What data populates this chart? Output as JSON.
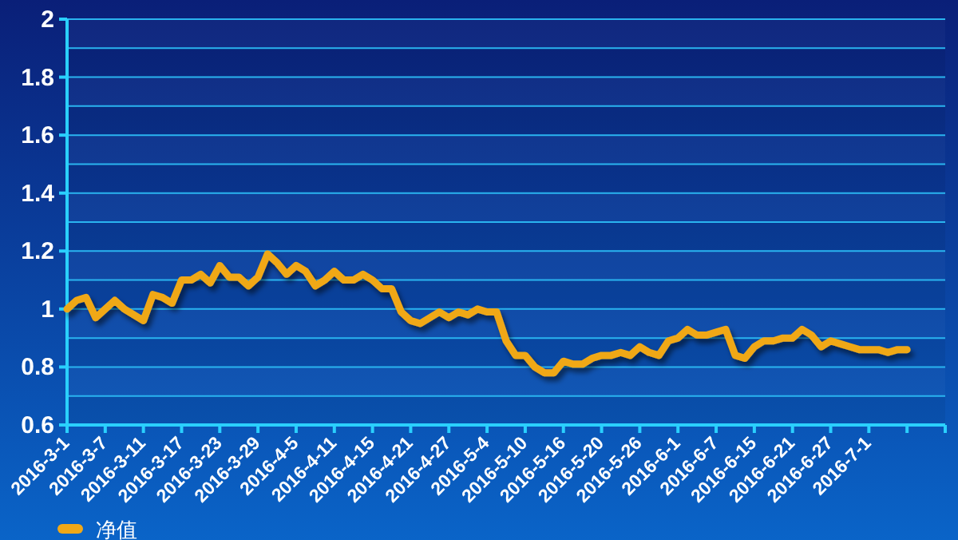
{
  "chart_data": {
    "type": "line",
    "categories": [
      "2016-3-1",
      null,
      null,
      null,
      "2016-3-7",
      null,
      null,
      null,
      "2016-3-11",
      null,
      null,
      null,
      "2016-3-17",
      null,
      null,
      null,
      "2016-3-23",
      null,
      null,
      null,
      "2016-3-29",
      null,
      null,
      null,
      "2016-4-5",
      null,
      null,
      null,
      "2016-4-11",
      null,
      null,
      null,
      "2016-4-15",
      null,
      null,
      null,
      "2016-4-21",
      null,
      null,
      null,
      "2016-4-27",
      null,
      null,
      null,
      "2016-5-4",
      null,
      null,
      null,
      "2016-5-10",
      null,
      null,
      null,
      "2016-5-16",
      null,
      null,
      null,
      "2016-5-20",
      null,
      null,
      null,
      "2016-5-26",
      null,
      null,
      null,
      "2016-6-1",
      null,
      null,
      null,
      "2016-6-7",
      null,
      null,
      null,
      "2016-6-15",
      null,
      null,
      null,
      "2016-6-21",
      null,
      null,
      null,
      "2016-6-27",
      null,
      null,
      null,
      "2016-7-1",
      null,
      null,
      null,
      null,
      null,
      null,
      null,
      null
    ],
    "series": [
      {
        "name": "净值",
        "color": "#f0a818",
        "values": [
          1.0,
          1.03,
          1.04,
          0.97,
          1.0,
          1.03,
          1.0,
          0.98,
          0.96,
          1.05,
          1.04,
          1.02,
          1.1,
          1.1,
          1.12,
          1.09,
          1.15,
          1.11,
          1.11,
          1.08,
          1.11,
          1.19,
          1.16,
          1.12,
          1.15,
          1.13,
          1.08,
          1.1,
          1.13,
          1.1,
          1.1,
          1.12,
          1.1,
          1.07,
          1.07,
          0.99,
          0.96,
          0.95,
          0.97,
          0.99,
          0.97,
          0.99,
          0.98,
          1.0,
          0.99,
          0.99,
          0.89,
          0.84,
          0.84,
          0.8,
          0.78,
          0.78,
          0.82,
          0.81,
          0.81,
          0.83,
          0.84,
          0.84,
          0.85,
          0.84,
          0.87,
          0.85,
          0.84,
          0.89,
          0.9,
          0.93,
          0.91,
          0.91,
          0.92,
          0.93,
          0.84,
          0.83,
          0.87,
          0.89,
          0.89,
          0.9,
          0.9,
          0.93,
          0.91,
          0.87,
          0.89,
          0.88,
          0.87,
          0.86,
          0.86,
          0.86,
          0.85,
          0.86,
          0.86,
          null,
          null,
          null,
          null
        ]
      }
    ],
    "ylim": [
      0.6,
      2
    ],
    "yticks": [
      0.6,
      {
        "value": 0.7,
        "label": null
      },
      0.8,
      {
        "value": 0.9,
        "label": null
      },
      1,
      {
        "value": 1.1,
        "label": null
      },
      1.2,
      {
        "value": 1.3,
        "label": null
      },
      1.4,
      {
        "value": 1.5,
        "label": null
      },
      1.6,
      {
        "value": 1.7,
        "label": null
      },
      1.8,
      {
        "value": 1.9,
        "label": null
      },
      2
    ],
    "grid": "y",
    "legend": "bottom left",
    "marker": "none",
    "line_style": "solid"
  }
}
